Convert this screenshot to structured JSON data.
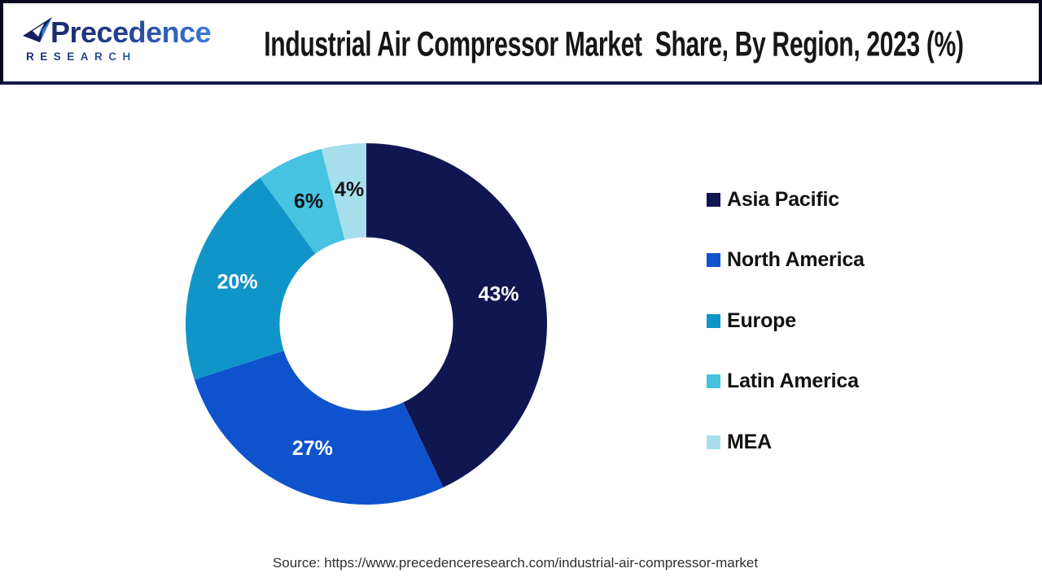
{
  "header": {
    "logo": {
      "brand": "Precedence",
      "sub": "RESEARCH"
    },
    "title": "Industrial Air Compressor Market  Share, By Region, 2023 (%)"
  },
  "chart_data": {
    "type": "pie",
    "subtype": "donut",
    "title": "Industrial Air Compressor Market Share, By Region, 2023 (%)",
    "unit": "%",
    "direction": "clockwise",
    "start_angle_deg": 0,
    "inner_radius_ratio": 0.48,
    "legend_position": "right",
    "data_labels": "value_percent",
    "slices": [
      {
        "label": "Asia Pacific",
        "value": 43,
        "color": "#101650",
        "label_color": "#FFFFFF"
      },
      {
        "label": "North America",
        "value": 27,
        "color": "#0F52CE",
        "label_color": "#FFFFFF"
      },
      {
        "label": "Europe",
        "value": 20,
        "color": "#1095C8",
        "label_color": "#FFFFFF"
      },
      {
        "label": "Latin America",
        "value": 6,
        "color": "#45C3E1",
        "label_color": "#141414"
      },
      {
        "label": "MEA",
        "value": 4,
        "color": "#A7DEEC",
        "label_color": "#141414"
      }
    ]
  },
  "footer": {
    "source": "Source: https://www.precedenceresearch.com/industrial-air-compressor-market"
  }
}
